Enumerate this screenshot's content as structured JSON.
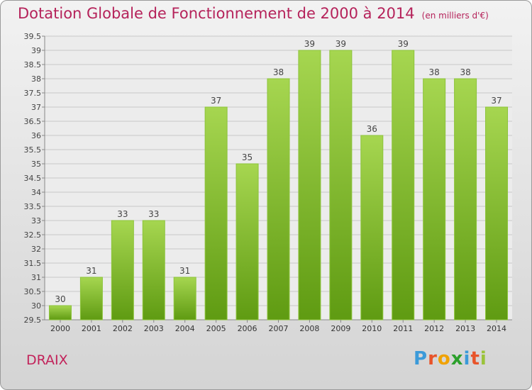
{
  "title": "Dotation Globale de Fonctionnement de 2000 à 2014",
  "unit": "(en milliers d'€)",
  "commune": "DRAIX",
  "logo": {
    "letters": [
      "P",
      "r",
      "o",
      "x",
      "i",
      "t",
      "i"
    ],
    "colors": [
      "#3b9ad9",
      "#e8542a",
      "#f0a202",
      "#2ca02c",
      "#3b9ad9",
      "#e8542a",
      "#9ac33a"
    ]
  },
  "colors": {
    "bar_top": "#a6d650",
    "bar_bottom": "#5f9b12",
    "title": "#b5225a"
  },
  "chart_data": {
    "type": "bar",
    "categories": [
      "2000",
      "2001",
      "2002",
      "2003",
      "2004",
      "2005",
      "2006",
      "2007",
      "2008",
      "2009",
      "2010",
      "2011",
      "2012",
      "2013",
      "2014"
    ],
    "values": [
      30,
      31,
      33,
      33,
      31,
      37,
      35,
      38,
      39,
      39,
      36,
      39,
      38,
      38,
      37
    ],
    "value_labels": [
      "30",
      "31",
      "33",
      "33",
      "31",
      "37",
      "35",
      "38",
      "39",
      "39",
      "36",
      "39",
      "38",
      "38",
      "37"
    ],
    "y_ticks": [
      "29.5",
      "30",
      "30.5",
      "31",
      "31.5",
      "32",
      "32.5",
      "33",
      "33.5",
      "34",
      "34.5",
      "35",
      "35.5",
      "36",
      "36.5",
      "37",
      "37.5",
      "38",
      "38.5",
      "39",
      "39.5"
    ],
    "ylim": [
      29.5,
      39.5
    ],
    "grid": true
  }
}
